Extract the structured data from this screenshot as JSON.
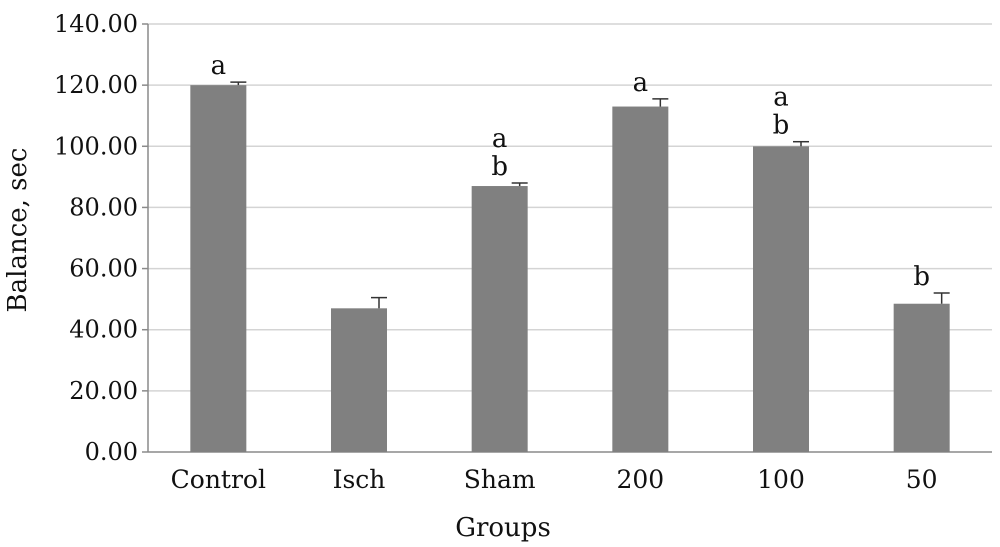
{
  "chart_data": {
    "type": "bar",
    "title": "",
    "xlabel": "Groups",
    "ylabel": "Balance, sec",
    "ylim": [
      0,
      140
    ],
    "yticks": [
      "0.00",
      "20.00",
      "40.00",
      "60.00",
      "80.00",
      "100.00",
      "120.00",
      "140.00"
    ],
    "categories": [
      "Control",
      "Isch",
      "Sham",
      "200",
      "100",
      "50"
    ],
    "values": [
      120,
      47,
      87,
      113,
      100,
      48.5
    ],
    "errors": [
      1,
      3.5,
      1,
      2.5,
      1.5,
      3.5
    ],
    "significance": [
      [
        "a"
      ],
      [],
      [
        "a",
        "b"
      ],
      [
        "a"
      ],
      [
        "a",
        "b"
      ],
      [
        "b"
      ]
    ],
    "grid": true,
    "legend": "none",
    "colors": {
      "bar": "#808080",
      "grid": "#d4d4d4",
      "axis": "#8a8a8a",
      "error": "#333333"
    }
  }
}
